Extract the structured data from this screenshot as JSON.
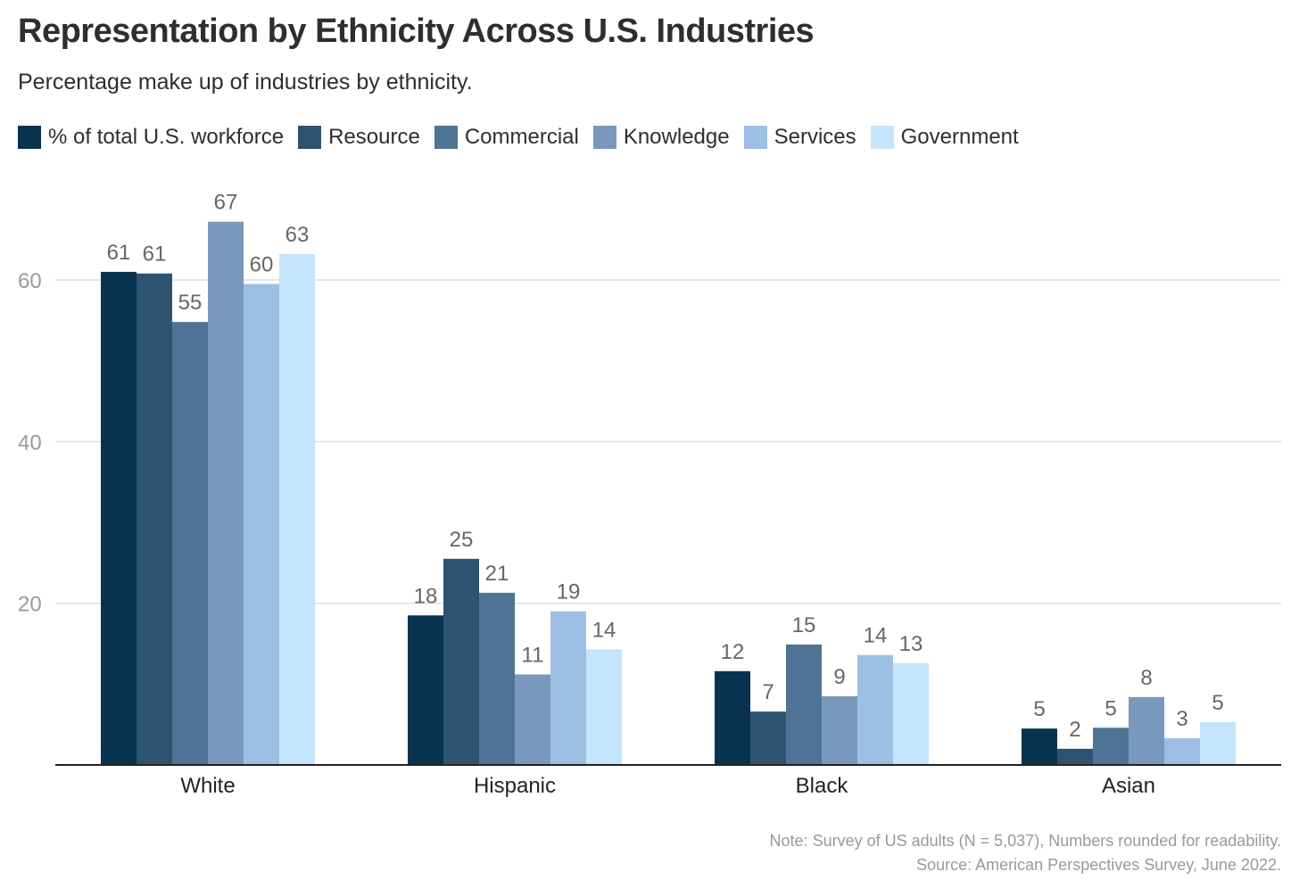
{
  "header": {
    "title": "Representation by Ethnicity Across U.S. Industries",
    "subtitle": "Percentage make up of industries by ethnicity."
  },
  "footer": {
    "note": "Note: Survey of US adults (N = 5,037), Numbers rounded for readability.",
    "source": "Source: American Perspectives Survey, June 2022."
  },
  "chart_data": {
    "type": "bar",
    "title": "Representation by Ethnicity Across U.S. Industries",
    "subtitle": "Percentage make up of industries by ethnicity.",
    "xlabel": "",
    "ylabel": "",
    "ylim": [
      0,
      70
    ],
    "yticks": [
      20,
      40,
      60
    ],
    "grid": true,
    "legend_position": "top-left",
    "categories": [
      "White",
      "Hispanic",
      "Black",
      "Asian"
    ],
    "series": [
      {
        "name": "% of total U.S. workforce",
        "color": "#08324f",
        "values": [
          61,
          18,
          12,
          5
        ],
        "display_values": [
          61,
          18.5,
          11.6,
          4.5
        ]
      },
      {
        "name": "Resource",
        "color": "#2d5373",
        "values": [
          61,
          25,
          7,
          2
        ],
        "display_values": [
          60.8,
          25.5,
          6.6,
          2
        ],
        "labels": [
          "61",
          "25",
          "7",
          "2"
        ]
      },
      {
        "name": "Commercial",
        "color": "#4f7394",
        "values": [
          55,
          21,
          15,
          5
        ],
        "display_values": [
          54.8,
          21.3,
          14.9,
          4.6
        ]
      },
      {
        "name": "Knowledge",
        "color": "#7899bc",
        "values": [
          67,
          11,
          9,
          8
        ],
        "display_values": [
          67.2,
          11.2,
          8.5,
          8.4
        ]
      },
      {
        "name": "Services",
        "color": "#9cbfe3",
        "values": [
          60,
          19,
          14,
          3
        ],
        "display_values": [
          59.5,
          19,
          13.6,
          3.3
        ]
      },
      {
        "name": "Government",
        "color": "#c4e5fc",
        "values": [
          63,
          14,
          13,
          5
        ],
        "display_values": [
          63.2,
          14.3,
          12.6,
          5.3
        ]
      }
    ]
  }
}
